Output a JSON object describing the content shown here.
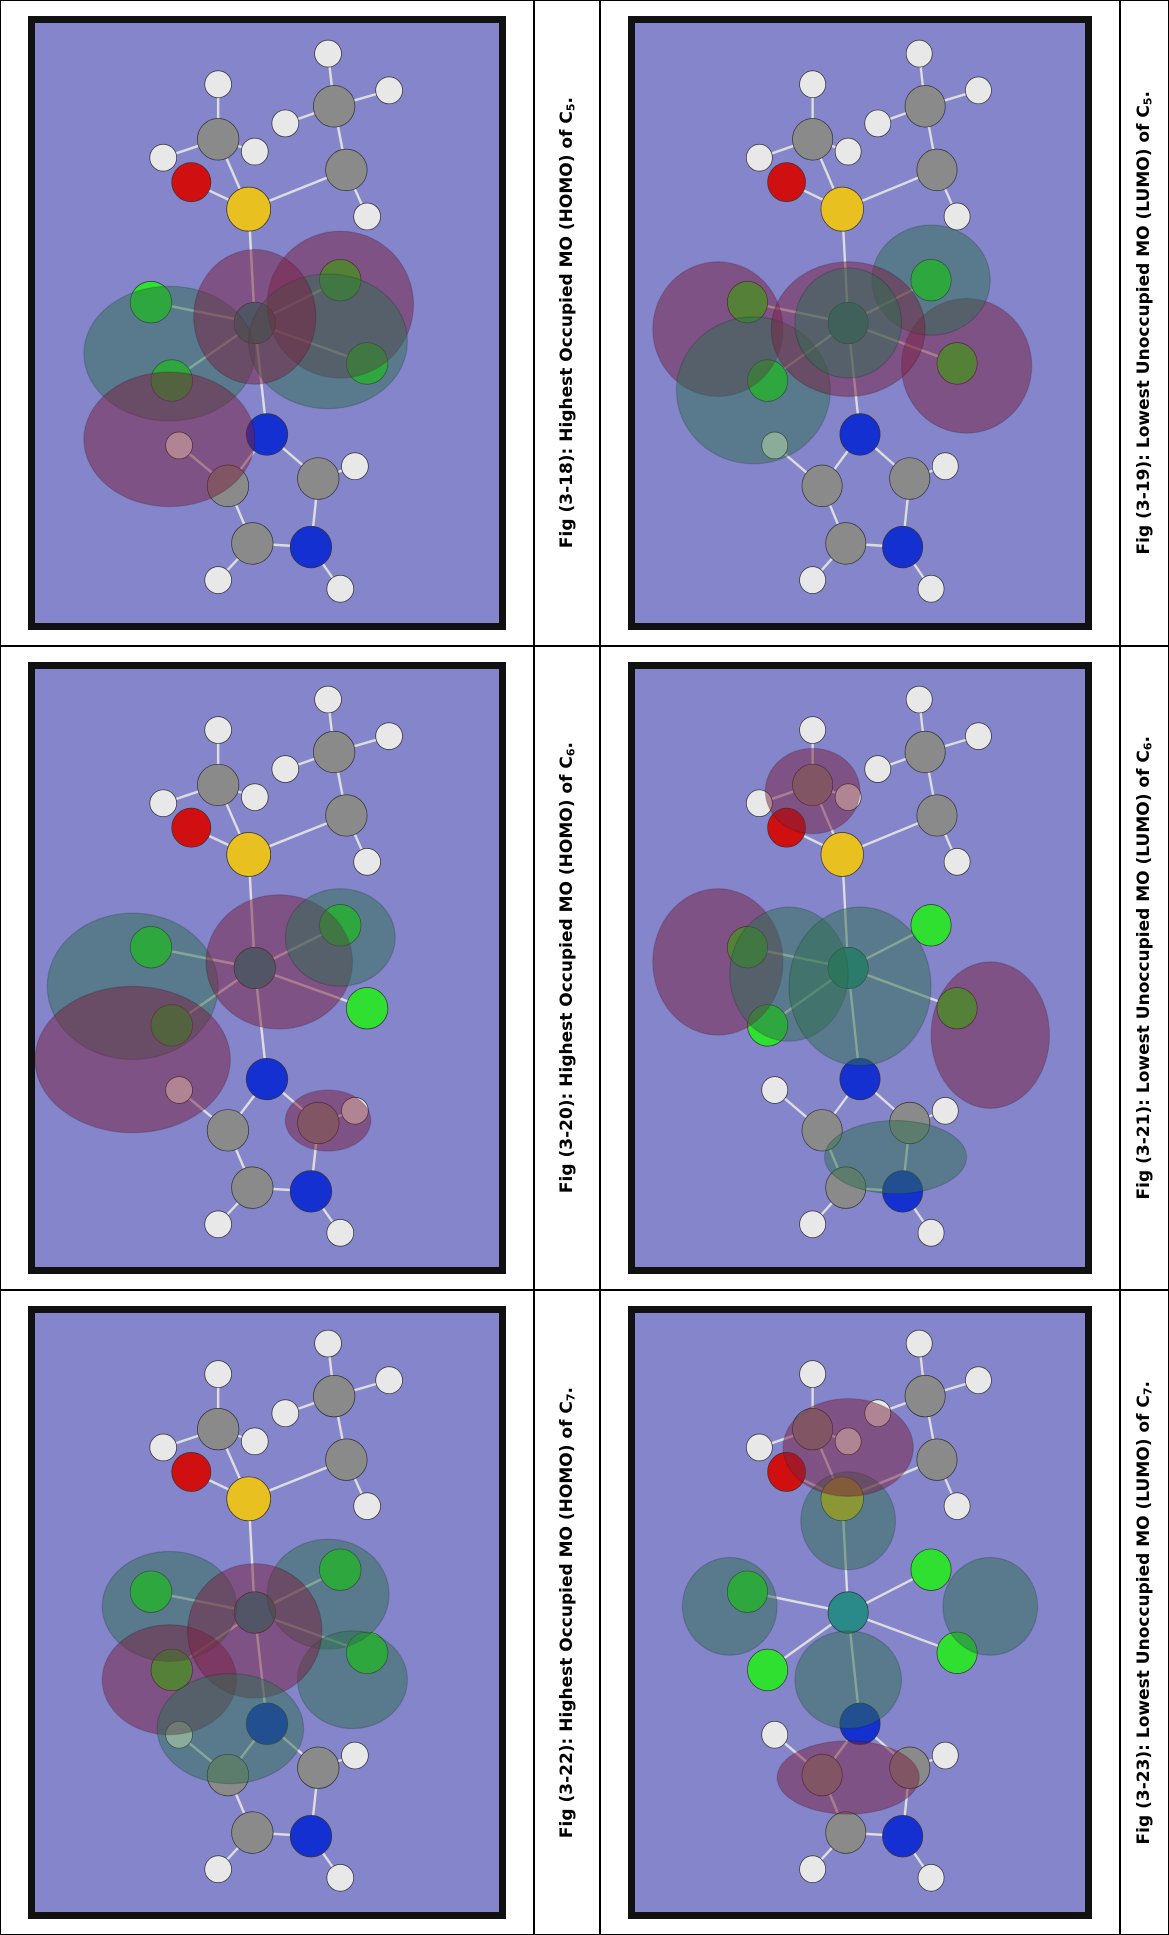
{
  "figures": [
    {
      "caption": "Fig (3-18): Highest Occupied MO (HOMO) of C",
      "subscript": "5",
      "end": "."
    },
    {
      "caption": "Fig (3-19): Lowest Unoccupied MO (LUMO) of C",
      "subscript": "5",
      "end": "."
    },
    {
      "caption": "Fig (3-20): Highest Occupied MO (HOMO) of C",
      "subscript": "6",
      "end": "."
    },
    {
      "caption": "Fig (3-21): Lowest Unoccupied MO (LUMO) of C",
      "subscript": "6",
      "end": "."
    },
    {
      "caption": "Fig (3-22): Highest Occupied MO (HOMO) of C",
      "subscript": "7",
      "end": "."
    },
    {
      "caption": "Fig (3-23): Lowest Unoccupied MO (LUMO) of C",
      "subscript": "7",
      "end": "."
    }
  ]
}
